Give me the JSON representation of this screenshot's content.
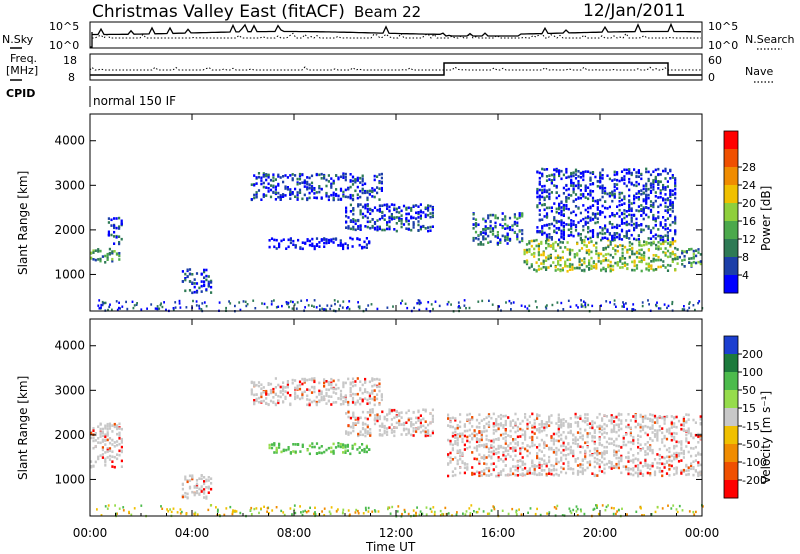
{
  "header": {
    "title": "Christmas Valley East (fitACF)",
    "beam": "Beam 22",
    "date": "12/Jan/2011"
  },
  "nsky_panel": {
    "left_label": "N.Sky",
    "right_label": "N.Search",
    "left_ticks": [
      "10^5",
      "10^0"
    ],
    "right_ticks": [
      "10^5",
      "10^0"
    ]
  },
  "freq_panel": {
    "left_label_1": "Freq.",
    "left_label_2": "[MHz]",
    "right_label": "Nave",
    "left_ticks": [
      "18",
      "8"
    ],
    "right_ticks": [
      "60",
      "0"
    ]
  },
  "cpid": {
    "label": "CPID",
    "mode": "normal 150 IF"
  },
  "colors": {
    "power": [
      "#0000ff",
      "#1c3fa8",
      "#2e7a55",
      "#4ca94c",
      "#8fcf3c",
      "#f0c000",
      "#f08c00",
      "#f05000",
      "#ff0000"
    ],
    "velocity": [
      "#1c3fd0",
      "#1c7a3c",
      "#4cbb4c",
      "#96dc4c",
      "#c8c8c8",
      "#f0c000",
      "#f08c00",
      "#f05000",
      "#ff0000"
    ],
    "ground_scatter": "#c8c8c8"
  },
  "chart_data": [
    {
      "type": "heatmap",
      "panel": "power",
      "ylabel": "Slant Range [km]",
      "y_ticks": [
        "1000",
        "2000",
        "3000",
        "4000"
      ],
      "ylim": [
        180,
        4600
      ],
      "x_ticks": [
        "00:00",
        "04:00",
        "08:00",
        "12:00",
        "16:00",
        "20:00",
        "00:00"
      ],
      "xlim_hours": [
        0,
        24
      ],
      "colorbar_label": "Power [dB]",
      "colorbar_ticks": [
        "4",
        "8",
        "12",
        "16",
        "20",
        "24",
        "28"
      ],
      "scatter_bands": [
        {
          "start_h": 0.0,
          "end_h": 1.2,
          "range_km": [
            1300,
            1600
          ],
          "power_db": 14
        },
        {
          "start_h": 0.7,
          "end_h": 1.3,
          "range_km": [
            1700,
            2300
          ],
          "power_db": 6
        },
        {
          "start_h": 3.6,
          "end_h": 4.8,
          "range_km": [
            600,
            1150
          ],
          "power_db": 6
        },
        {
          "start_h": 6.3,
          "end_h": 11.5,
          "range_km": [
            2700,
            3300
          ],
          "power_db": 6
        },
        {
          "start_h": 7.0,
          "end_h": 11.0,
          "range_km": [
            1600,
            1850
          ],
          "power_db": 5
        },
        {
          "start_h": 10.0,
          "end_h": 13.5,
          "range_km": [
            2000,
            2600
          ],
          "power_db": 6
        },
        {
          "start_h": 15.0,
          "end_h": 17.0,
          "range_km": [
            1700,
            2400
          ],
          "power_db": 10
        },
        {
          "start_h": 17.0,
          "end_h": 23.0,
          "range_km": [
            1100,
            1800
          ],
          "power_db": 20
        },
        {
          "start_h": 17.5,
          "end_h": 23.0,
          "range_km": [
            1800,
            3400
          ],
          "power_db": 6
        },
        {
          "start_h": 23.0,
          "end_h": 24.0,
          "range_km": [
            1200,
            1600
          ],
          "power_db": 14
        }
      ]
    },
    {
      "type": "heatmap",
      "panel": "velocity",
      "ylabel": "Slant Range [km]",
      "y_ticks": [
        "1000",
        "2000",
        "3000",
        "4000"
      ],
      "ylim": [
        180,
        4600
      ],
      "x_ticks": [
        "00:00",
        "04:00",
        "08:00",
        "12:00",
        "16:00",
        "20:00",
        "00:00"
      ],
      "xlabel": "Time UT",
      "xlim_hours": [
        0,
        24
      ],
      "colorbar_label": "Velocity [m s⁻¹]",
      "colorbar_ticks": [
        "200",
        "100",
        "50",
        "15",
        "-15",
        "-50",
        "-100",
        "-200"
      ],
      "scatter_bands": [
        {
          "start_h": 0.0,
          "end_h": 1.3,
          "range_km": [
            1300,
            2300
          ],
          "velocity": 0
        },
        {
          "start_h": 3.6,
          "end_h": 4.8,
          "range_km": [
            600,
            1150
          ],
          "velocity": 0
        },
        {
          "start_h": 6.3,
          "end_h": 11.5,
          "range_km": [
            2700,
            3300
          ],
          "velocity": 0
        },
        {
          "start_h": 7.0,
          "end_h": 11.0,
          "range_km": [
            1600,
            1850
          ],
          "velocity": 60
        },
        {
          "start_h": 10.0,
          "end_h": 13.5,
          "range_km": [
            2000,
            2600
          ],
          "velocity": 0
        },
        {
          "start_h": 14.0,
          "end_h": 24.0,
          "range_km": [
            1100,
            2500
          ],
          "velocity": 0
        }
      ]
    }
  ]
}
